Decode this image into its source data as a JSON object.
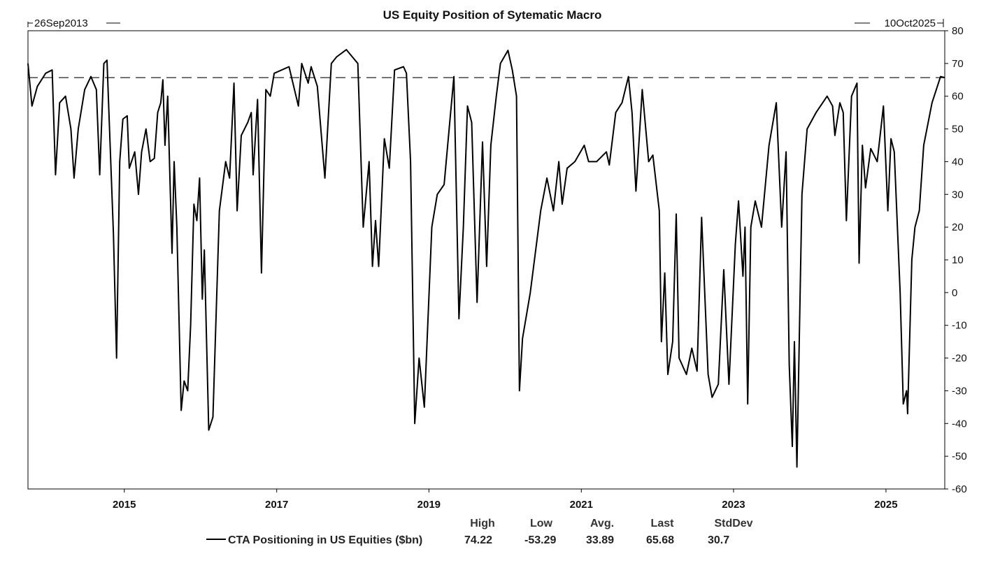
{
  "chart_data": {
    "type": "line",
    "title": "US Equity Position of Sytematic Macro",
    "start_label": "26Sep2013",
    "end_label": "10Oct2025",
    "x_start": "2013-09-26",
    "x_end": "2025-10-10",
    "xlabel": "",
    "ylabel": "",
    "ylim": [
      -60,
      80
    ],
    "y_ticks": [
      80,
      70,
      60,
      50,
      40,
      30,
      20,
      10,
      0,
      -10,
      -20,
      -30,
      -40,
      -50,
      -60
    ],
    "x_tick_labels": [
      "2015",
      "2017",
      "2019",
      "2021",
      "2023",
      "2025"
    ],
    "x_tick_dates": [
      "2015-01-01",
      "2017-01-01",
      "2019-01-01",
      "2021-01-01",
      "2023-01-01",
      "2025-01-01"
    ],
    "grid": false,
    "reference_line": {
      "y": 65.68,
      "style": "dashed"
    },
    "stats_headers": [
      "High",
      "Low",
      "Avg.",
      "Last",
      "StdDev"
    ],
    "series": [
      {
        "name": "CTA Positioning in US Equities ($bn)",
        "color": "#000000",
        "stats": [
          "74.22",
          "-53.29",
          "33.89",
          "65.68",
          "30.7"
        ],
        "points": [
          [
            "2013-09-26",
            70
          ],
          [
            "2013-10-15",
            57
          ],
          [
            "2013-11-10",
            63
          ],
          [
            "2013-12-20",
            67
          ],
          [
            "2014-01-20",
            68
          ],
          [
            "2014-02-05",
            36
          ],
          [
            "2014-02-25",
            58
          ],
          [
            "2014-03-25",
            60
          ],
          [
            "2014-04-20",
            50
          ],
          [
            "2014-05-05",
            35
          ],
          [
            "2014-05-25",
            50
          ],
          [
            "2014-06-25",
            62
          ],
          [
            "2014-07-25",
            66
          ],
          [
            "2014-08-20",
            62
          ],
          [
            "2014-09-05",
            36
          ],
          [
            "2014-09-25",
            70
          ],
          [
            "2014-10-10",
            71
          ],
          [
            "2014-10-25",
            45
          ],
          [
            "2014-11-10",
            18
          ],
          [
            "2014-11-25",
            -20
          ],
          [
            "2014-12-10",
            40
          ],
          [
            "2014-12-25",
            53
          ],
          [
            "2015-01-15",
            54
          ],
          [
            "2015-01-25",
            38
          ],
          [
            "2015-02-20",
            43
          ],
          [
            "2015-03-10",
            30
          ],
          [
            "2015-03-25",
            43
          ],
          [
            "2015-04-15",
            50
          ],
          [
            "2015-05-05",
            40
          ],
          [
            "2015-05-25",
            41
          ],
          [
            "2015-06-10",
            55
          ],
          [
            "2015-06-25",
            58
          ],
          [
            "2015-07-05",
            65
          ],
          [
            "2015-07-15",
            45
          ],
          [
            "2015-07-28",
            60
          ],
          [
            "2015-08-08",
            35
          ],
          [
            "2015-08-18",
            12
          ],
          [
            "2015-08-28",
            40
          ],
          [
            "2015-09-10",
            20
          ],
          [
            "2015-10-01",
            -36
          ],
          [
            "2015-10-15",
            -27
          ],
          [
            "2015-11-01",
            -30
          ],
          [
            "2015-11-15",
            -10
          ],
          [
            "2015-12-01",
            27
          ],
          [
            "2015-12-15",
            22
          ],
          [
            "2015-12-28",
            35
          ],
          [
            "2016-01-10",
            -2
          ],
          [
            "2016-01-20",
            13
          ],
          [
            "2016-02-10",
            -42
          ],
          [
            "2016-03-01",
            -38
          ],
          [
            "2016-04-01",
            25
          ],
          [
            "2016-05-01",
            40
          ],
          [
            "2016-05-20",
            35
          ],
          [
            "2016-06-10",
            64
          ],
          [
            "2016-06-25",
            25
          ],
          [
            "2016-07-15",
            48
          ],
          [
            "2016-08-15",
            52
          ],
          [
            "2016-09-01",
            55
          ],
          [
            "2016-09-10",
            36
          ],
          [
            "2016-10-01",
            59
          ],
          [
            "2016-10-20",
            6
          ],
          [
            "2016-11-10",
            62
          ],
          [
            "2016-12-01",
            60
          ],
          [
            "2016-12-20",
            67
          ],
          [
            "2017-03-01",
            69
          ],
          [
            "2017-04-15",
            57
          ],
          [
            "2017-05-01",
            70
          ],
          [
            "2017-06-01",
            64
          ],
          [
            "2017-06-15",
            69
          ],
          [
            "2017-07-15",
            63
          ],
          [
            "2017-08-20",
            35
          ],
          [
            "2017-09-20",
            70
          ],
          [
            "2017-10-15",
            72
          ],
          [
            "2017-12-01",
            74.22
          ],
          [
            "2018-01-25",
            70
          ],
          [
            "2018-02-20",
            20
          ],
          [
            "2018-03-20",
            40
          ],
          [
            "2018-04-05",
            8
          ],
          [
            "2018-04-20",
            22
          ],
          [
            "2018-05-05",
            8
          ],
          [
            "2018-06-01",
            47
          ],
          [
            "2018-06-25",
            38
          ],
          [
            "2018-07-20",
            68
          ],
          [
            "2018-09-01",
            69
          ],
          [
            "2018-09-15",
            67
          ],
          [
            "2018-10-05",
            40
          ],
          [
            "2018-10-25",
            -40
          ],
          [
            "2018-11-15",
            -20
          ],
          [
            "2018-12-10",
            -35
          ],
          [
            "2019-01-15",
            20
          ],
          [
            "2019-02-10",
            30
          ],
          [
            "2019-03-15",
            33
          ],
          [
            "2019-04-15",
            55
          ],
          [
            "2019-05-01",
            66
          ],
          [
            "2019-05-25",
            -8
          ],
          [
            "2019-06-15",
            20
          ],
          [
            "2019-07-05",
            57
          ],
          [
            "2019-07-25",
            52
          ],
          [
            "2019-08-20",
            -3
          ],
          [
            "2019-09-15",
            46
          ],
          [
            "2019-10-05",
            8
          ],
          [
            "2019-10-25",
            45
          ],
          [
            "2019-11-20",
            60
          ],
          [
            "2019-12-10",
            70
          ],
          [
            "2020-01-15",
            74
          ],
          [
            "2020-02-05",
            68
          ],
          [
            "2020-02-25",
            60
          ],
          [
            "2020-03-10",
            -30
          ],
          [
            "2020-03-25",
            -14
          ],
          [
            "2020-05-01",
            0
          ],
          [
            "2020-06-20",
            25
          ],
          [
            "2020-07-20",
            35
          ],
          [
            "2020-08-20",
            25
          ],
          [
            "2020-09-15",
            40
          ],
          [
            "2020-10-01",
            27
          ],
          [
            "2020-10-25",
            38
          ],
          [
            "2020-12-01",
            40
          ],
          [
            "2021-01-15",
            45
          ],
          [
            "2021-02-05",
            40
          ],
          [
            "2021-03-15",
            40
          ],
          [
            "2021-05-01",
            43
          ],
          [
            "2021-05-15",
            39
          ],
          [
            "2021-06-15",
            55
          ],
          [
            "2021-07-15",
            58
          ],
          [
            "2021-08-15",
            66
          ],
          [
            "2021-09-01",
            55
          ],
          [
            "2021-09-20",
            31
          ],
          [
            "2021-10-20",
            62
          ],
          [
            "2021-11-20",
            40
          ],
          [
            "2021-12-10",
            42
          ],
          [
            "2022-01-10",
            25
          ],
          [
            "2022-01-20",
            -15
          ],
          [
            "2022-02-05",
            6
          ],
          [
            "2022-02-20",
            -25
          ],
          [
            "2022-03-15",
            -15
          ],
          [
            "2022-04-01",
            24
          ],
          [
            "2022-04-15",
            -20
          ],
          [
            "2022-05-20",
            -25
          ],
          [
            "2022-06-15",
            -17
          ],
          [
            "2022-07-10",
            -24
          ],
          [
            "2022-08-01",
            23
          ],
          [
            "2022-09-01",
            -25
          ],
          [
            "2022-09-20",
            -32
          ],
          [
            "2022-10-20",
            -28
          ],
          [
            "2022-11-15",
            7
          ],
          [
            "2022-12-10",
            -28
          ],
          [
            "2023-01-10",
            15
          ],
          [
            "2023-01-25",
            28
          ],
          [
            "2023-02-15",
            5
          ],
          [
            "2023-02-25",
            20
          ],
          [
            "2023-03-10",
            -34
          ],
          [
            "2023-03-25",
            20
          ],
          [
            "2023-04-15",
            28
          ],
          [
            "2023-05-15",
            20
          ],
          [
            "2023-06-20",
            45
          ],
          [
            "2023-07-25",
            58
          ],
          [
            "2023-08-20",
            20
          ],
          [
            "2023-09-10",
            43
          ],
          [
            "2023-09-25",
            -22
          ],
          [
            "2023-10-10",
            -47
          ],
          [
            "2023-10-20",
            -15
          ],
          [
            "2023-11-01",
            -53.29
          ],
          [
            "2023-11-25",
            30
          ],
          [
            "2023-12-20",
            50
          ],
          [
            "2024-02-01",
            55
          ],
          [
            "2024-03-25",
            60
          ],
          [
            "2024-04-20",
            57
          ],
          [
            "2024-05-01",
            48
          ],
          [
            "2024-05-25",
            58
          ],
          [
            "2024-06-10",
            55
          ],
          [
            "2024-06-25",
            22
          ],
          [
            "2024-07-20",
            60
          ],
          [
            "2024-08-15",
            64
          ],
          [
            "2024-08-25",
            9
          ],
          [
            "2024-09-10",
            45
          ],
          [
            "2024-09-25",
            32
          ],
          [
            "2024-10-20",
            44
          ],
          [
            "2024-11-20",
            40
          ],
          [
            "2024-12-20",
            57
          ],
          [
            "2025-01-10",
            25
          ],
          [
            "2025-01-25",
            47
          ],
          [
            "2025-02-10",
            43
          ],
          [
            "2025-03-10",
            0
          ],
          [
            "2025-03-25",
            -34
          ],
          [
            "2025-04-10",
            -30
          ],
          [
            "2025-04-15",
            -37
          ],
          [
            "2025-05-05",
            10
          ],
          [
            "2025-05-20",
            20
          ],
          [
            "2025-06-10",
            25
          ],
          [
            "2025-07-01",
            45
          ],
          [
            "2025-08-10",
            58
          ],
          [
            "2025-09-20",
            66
          ],
          [
            "2025-10-10",
            65.68
          ]
        ]
      }
    ]
  }
}
